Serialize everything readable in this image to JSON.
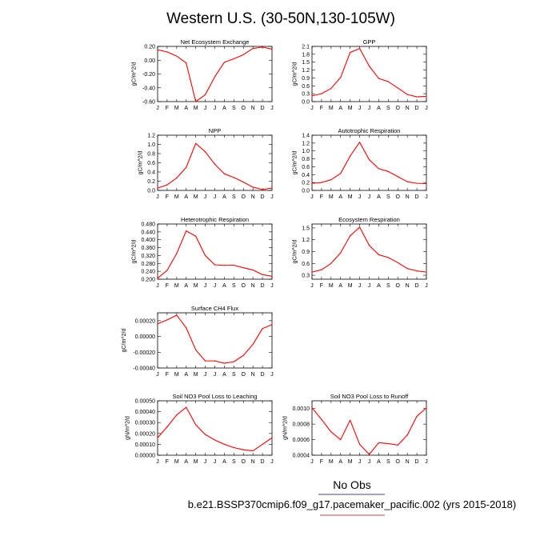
{
  "figure": {
    "title": "Western U.S. (30-50N,130-105W)",
    "legend_label": "No Obs",
    "case_label": "b.e21.BSSP370cmip6.f09_g17.pacemaker_pacific.002 (yrs 2015-2018)",
    "line_color": "#ff0000",
    "legend_rule_color": "#4b3fa0",
    "case_rule_color": "#d04040"
  },
  "chart_data": [
    {
      "type": "line",
      "title": "Net Ecosystem Exchange",
      "ylabel": "gC/m^2/d",
      "x": [
        "J",
        "F",
        "M",
        "A",
        "M",
        "J",
        "J",
        "A",
        "S",
        "O",
        "N",
        "D",
        "J"
      ],
      "ylim": [
        -0.6,
        0.2
      ],
      "yticks": [
        -0.6,
        -0.4,
        -0.2,
        0.0,
        0.2
      ],
      "ytick_labels": [
        "-0.60",
        "-0.40",
        "-0.20",
        "0.00",
        "0.20"
      ],
      "series": [
        {
          "values": [
            0.15,
            0.12,
            0.06,
            -0.04,
            -0.6,
            -0.5,
            -0.24,
            -0.03,
            0.02,
            0.08,
            0.17,
            0.19,
            0.16
          ]
        }
      ]
    },
    {
      "type": "line",
      "title": "GPP",
      "ylabel": "gC/m^2/d",
      "x": [
        "J",
        "F",
        "M",
        "A",
        "M",
        "J",
        "J",
        "A",
        "S",
        "O",
        "N",
        "D",
        "J"
      ],
      "ylim": [
        0,
        2.1
      ],
      "yticks": [
        0,
        0.3,
        0.6,
        0.9,
        1.2,
        1.5,
        1.8,
        2.1
      ],
      "ytick_labels": [
        "0.0",
        "0.3",
        "0.6",
        "0.9",
        "1.2",
        "1.5",
        "1.8",
        "2.1"
      ],
      "series": [
        {
          "values": [
            0.22,
            0.3,
            0.5,
            0.92,
            1.87,
            2.02,
            1.35,
            0.88,
            0.76,
            0.52,
            0.27,
            0.18,
            0.2
          ]
        }
      ]
    },
    {
      "type": "line",
      "title": "NPP",
      "ylabel": "gC/m^2/d",
      "x": [
        "J",
        "F",
        "M",
        "A",
        "M",
        "J",
        "J",
        "A",
        "S",
        "O",
        "N",
        "D",
        "J"
      ],
      "ylim": [
        0,
        1.2
      ],
      "yticks": [
        0,
        0.2,
        0.4,
        0.6,
        0.8,
        1.0,
        1.2
      ],
      "ytick_labels": [
        "0.0",
        "0.2",
        "0.4",
        "0.6",
        "0.8",
        "1.0",
        "1.2"
      ],
      "series": [
        {
          "values": [
            0.05,
            0.12,
            0.27,
            0.5,
            1.02,
            0.84,
            0.57,
            0.36,
            0.28,
            0.18,
            0.07,
            0.02,
            0.05
          ]
        }
      ]
    },
    {
      "type": "line",
      "title": "Autotrophic Respiration",
      "ylabel": "gC/m^2/d",
      "x": [
        "J",
        "F",
        "M",
        "A",
        "M",
        "J",
        "J",
        "A",
        "S",
        "O",
        "N",
        "D",
        "J"
      ],
      "ylim": [
        0,
        1.4
      ],
      "yticks": [
        0,
        0.2,
        0.4,
        0.6,
        0.8,
        1.0,
        1.2,
        1.4
      ],
      "ytick_labels": [
        "0.0",
        "0.2",
        "0.4",
        "0.6",
        "0.8",
        "1.0",
        "1.2",
        "1.4"
      ],
      "series": [
        {
          "values": [
            0.18,
            0.2,
            0.27,
            0.43,
            0.87,
            1.22,
            0.78,
            0.55,
            0.48,
            0.35,
            0.22,
            0.18,
            0.17
          ]
        }
      ]
    },
    {
      "type": "line",
      "title": "Heterotrophic Respiration",
      "ylabel": "gC/m^2/d",
      "x": [
        "J",
        "F",
        "M",
        "A",
        "M",
        "J",
        "J",
        "A",
        "S",
        "O",
        "N",
        "D",
        "J"
      ],
      "ylim": [
        0.2,
        0.48
      ],
      "yticks": [
        0.2,
        0.24,
        0.28,
        0.32,
        0.36,
        0.4,
        0.44,
        0.48
      ],
      "ytick_labels": [
        "0.200",
        "0.240",
        "0.280",
        "0.320",
        "0.360",
        "0.400",
        "0.440",
        "0.480"
      ],
      "series": [
        {
          "values": [
            0.205,
            0.245,
            0.33,
            0.445,
            0.418,
            0.32,
            0.273,
            0.27,
            0.271,
            0.258,
            0.247,
            0.223,
            0.215
          ]
        }
      ]
    },
    {
      "type": "line",
      "title": "Ecosystem Respiration",
      "ylabel": "gC/m^2/d",
      "x": [
        "J",
        "F",
        "M",
        "A",
        "M",
        "J",
        "J",
        "A",
        "S",
        "O",
        "N",
        "D",
        "J"
      ],
      "ylim": [
        0.2,
        1.6
      ],
      "yticks": [
        0.3,
        0.6,
        0.9,
        1.2,
        1.5
      ],
      "ytick_labels": [
        "0.3",
        "0.6",
        "0.9",
        "1.2",
        "1.5"
      ],
      "series": [
        {
          "values": [
            0.38,
            0.44,
            0.6,
            0.87,
            1.3,
            1.52,
            1.06,
            0.82,
            0.75,
            0.62,
            0.47,
            0.41,
            0.38
          ]
        }
      ]
    },
    {
      "type": "line",
      "title": "Surface CH4 Flux",
      "ylabel": "gC/m^2/d",
      "x": [
        "J",
        "F",
        "M",
        "A",
        "M",
        "J",
        "J",
        "A",
        "S",
        "O",
        "N",
        "D",
        "J"
      ],
      "ylim": [
        -0.0004,
        0.0003
      ],
      "yticks": [
        -0.0004,
        -0.0002,
        0.0,
        0.0002
      ],
      "ytick_labels": [
        "-0.00040",
        "-0.00020",
        "0.00000",
        "0.00020"
      ],
      "series": [
        {
          "values": [
            0.00016,
            0.00021,
            0.00027,
            0.00011,
            -0.00017,
            -0.00031,
            -0.00031,
            -0.00034,
            -0.00032,
            -0.00024,
            -0.0001,
            0.0001,
            0.00015
          ]
        }
      ]
    },
    {
      "type": "line",
      "title": "Soil NO3 Pool Loss to Leaching",
      "ylabel": "gN/m^2/d",
      "x": [
        "J",
        "F",
        "M",
        "A",
        "M",
        "J",
        "J",
        "A",
        "S",
        "O",
        "N",
        "D",
        "J"
      ],
      "ylim": [
        0,
        0.0005
      ],
      "yticks": [
        0,
        0.0001,
        0.0002,
        0.0003,
        0.0004,
        0.0005
      ],
      "ytick_labels": [
        "0.00000",
        "0.00010",
        "0.00020",
        "0.00030",
        "0.00040",
        "0.00050"
      ],
      "series": [
        {
          "values": [
            0.00016,
            0.00026,
            0.00037,
            0.00044,
            0.00028,
            0.00019,
            0.00014,
            0.0001,
            7e-05,
            5e-05,
            4e-05,
            0.0001,
            0.00016
          ]
        }
      ]
    },
    {
      "type": "line",
      "title": "Soil NO3 Pool Loss to Runoff",
      "ylabel": "gN/m^2/d",
      "x": [
        "J",
        "F",
        "M",
        "A",
        "M",
        "J",
        "J",
        "A",
        "S",
        "O",
        "N",
        "D",
        "J"
      ],
      "ylim": [
        0.0004,
        0.0011
      ],
      "yticks": [
        0.0004,
        0.0006,
        0.0008,
        0.001
      ],
      "ytick_labels": [
        "0.0004",
        "0.0006",
        "0.0008",
        "0.0010"
      ],
      "series": [
        {
          "values": [
            0.00101,
            0.00086,
            0.0007,
            0.0006,
            0.00085,
            0.00054,
            0.00041,
            0.00056,
            0.00055,
            0.00053,
            0.00066,
            0.0009,
            0.00101
          ]
        }
      ]
    }
  ]
}
